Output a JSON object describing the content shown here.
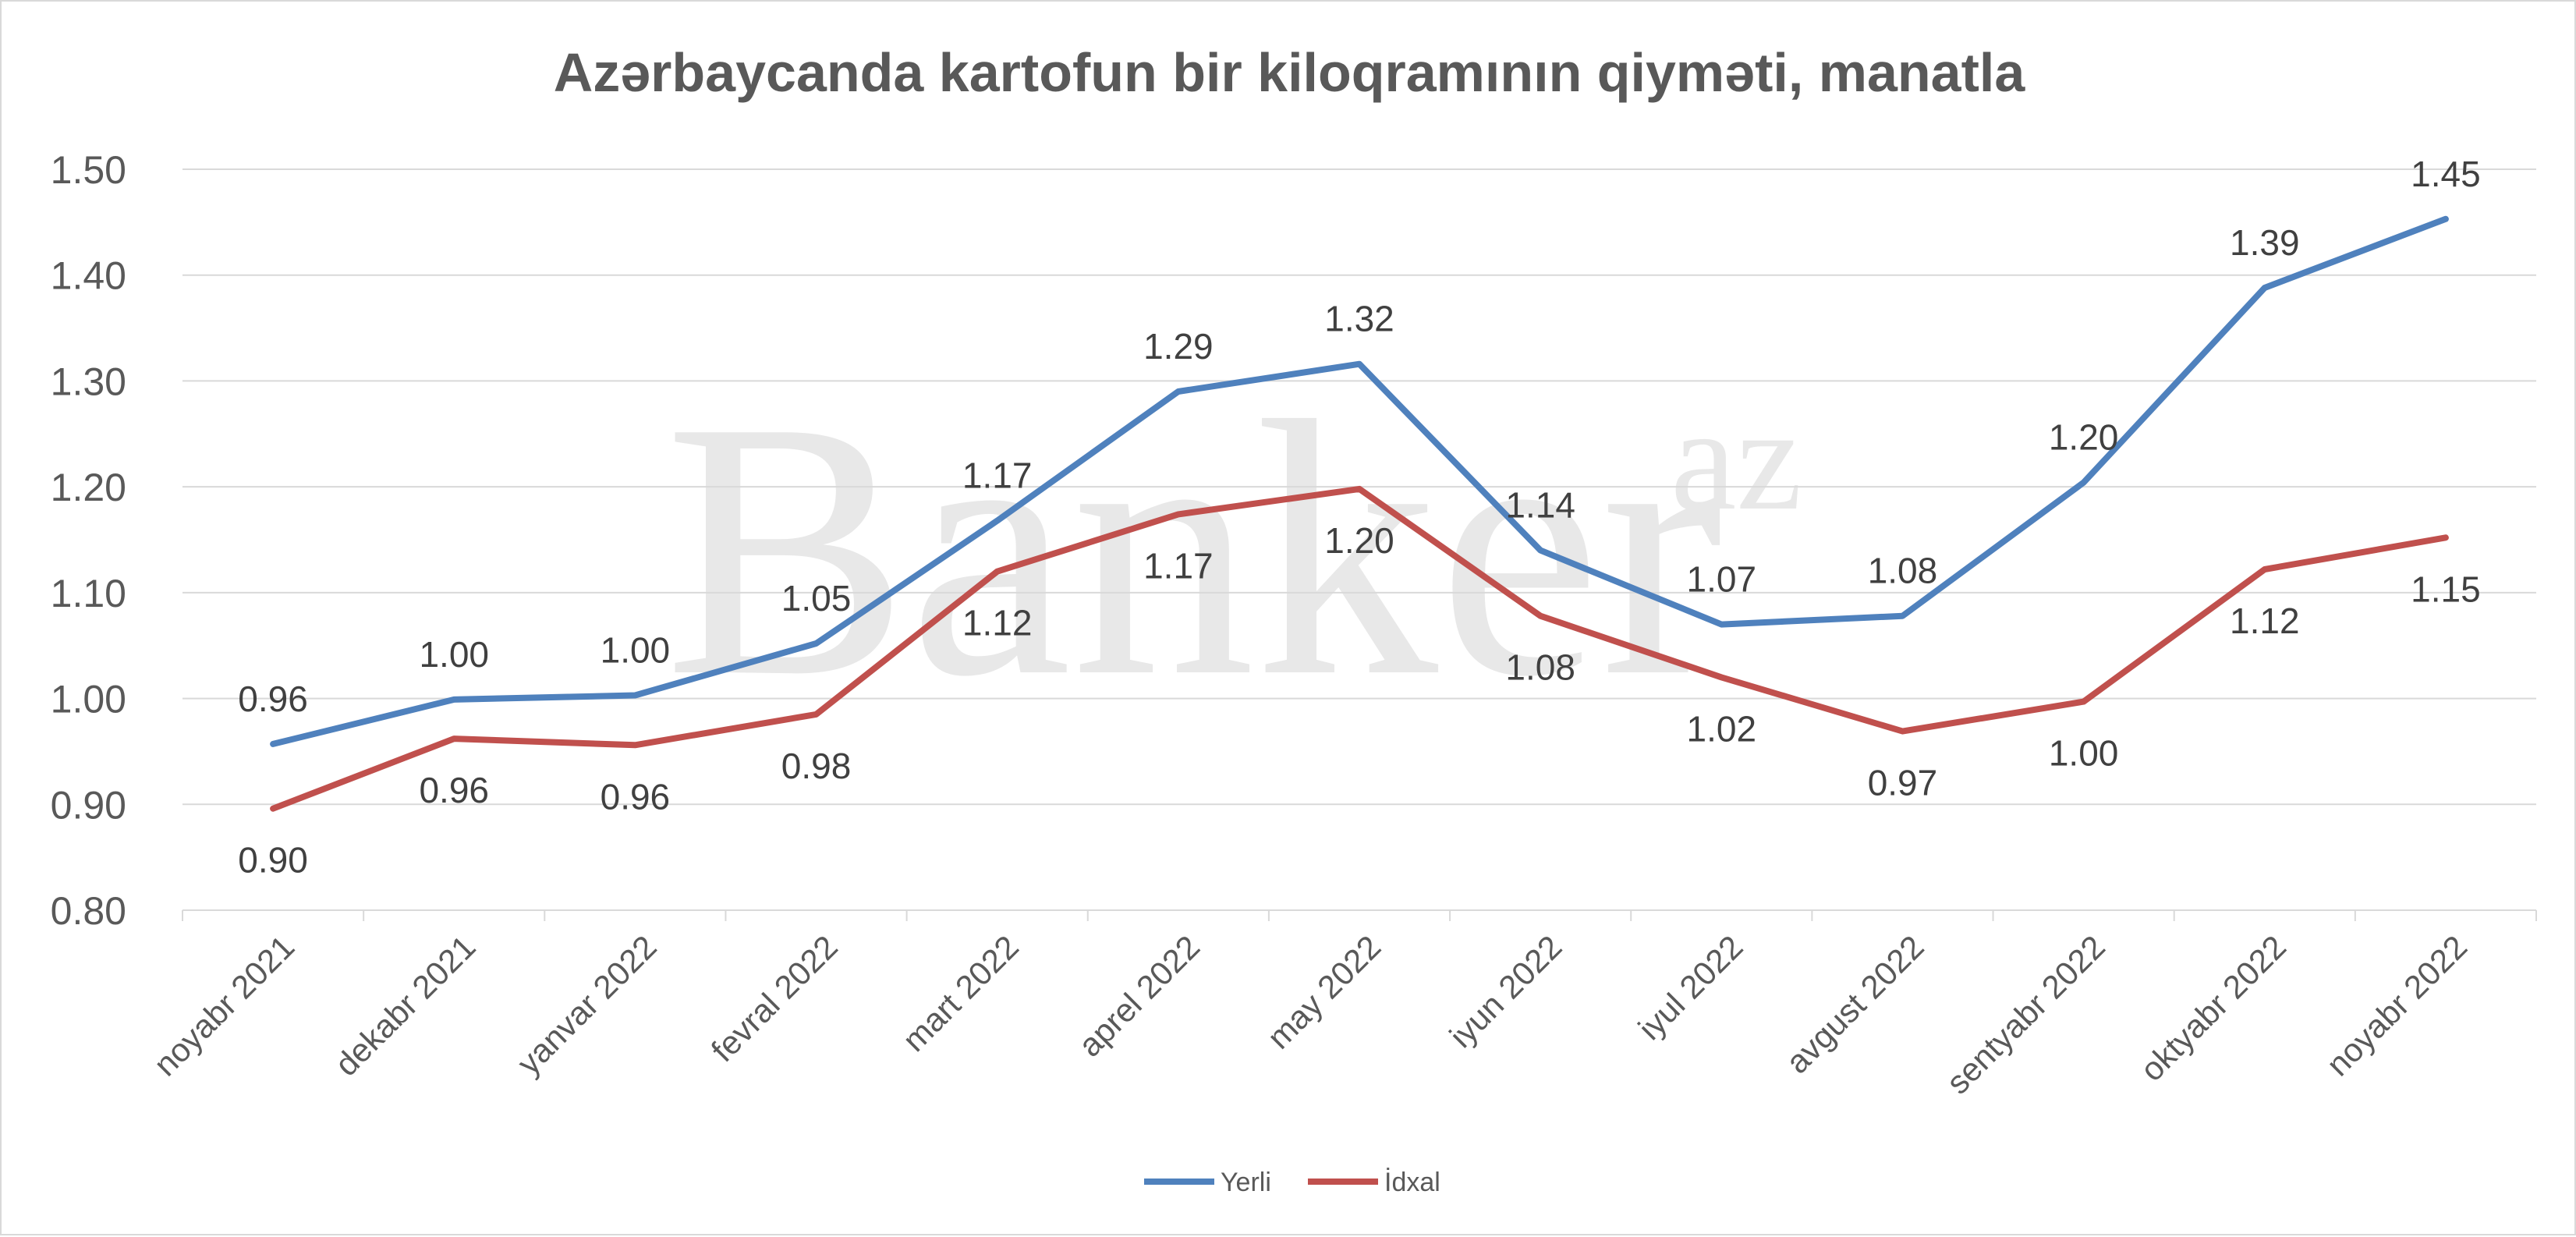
{
  "watermark": {
    "main": "Banker",
    "suffix": "az"
  },
  "chart_data": {
    "type": "line",
    "title": "Azərbaycanda kartofun bir kiloqramının qiyməti, manatla",
    "xlabel": "",
    "ylabel": "",
    "categories": [
      "noyabr 2021",
      "dekabr 2021",
      "yanvar 2022",
      "fevral 2022",
      "mart 2022",
      "aprel 2022",
      "may 2022",
      "iyun 2022",
      "iyul 2022",
      "avgust 2022",
      "sentyabr 2022",
      "oktyabr 2022",
      "noyabr 2022"
    ],
    "ylim": [
      0.8,
      1.5
    ],
    "yticks": [
      "0.80",
      "0.90",
      "1.00",
      "1.10",
      "1.20",
      "1.30",
      "1.40",
      "1.50"
    ],
    "grid": true,
    "legend_position": "bottom",
    "series": [
      {
        "name": "Yerli",
        "color": "#4f81bd",
        "values": [
          0.957,
          0.999,
          1.003,
          1.052,
          1.168,
          1.29,
          1.316,
          1.14,
          1.07,
          1.078,
          1.204,
          1.388,
          1.453
        ],
        "labels": [
          "0.96",
          "1.00",
          "1.00",
          "1.05",
          "1.17",
          "1.29",
          "1.32",
          "1.14",
          "1.07",
          "1.08",
          "1.20",
          "1.39",
          "1.45"
        ]
      },
      {
        "name": "İdxal",
        "color": "#c0504d",
        "values": [
          0.896,
          0.962,
          0.956,
          0.985,
          1.12,
          1.174,
          1.198,
          1.078,
          1.02,
          0.969,
          0.997,
          1.122,
          1.152
        ],
        "labels": [
          "0.90",
          "0.96",
          "0.96",
          "0.98",
          "1.12",
          "1.17",
          "1.20",
          "1.08",
          "1.02",
          "0.97",
          "1.00",
          "1.12",
          "1.15"
        ]
      }
    ]
  }
}
